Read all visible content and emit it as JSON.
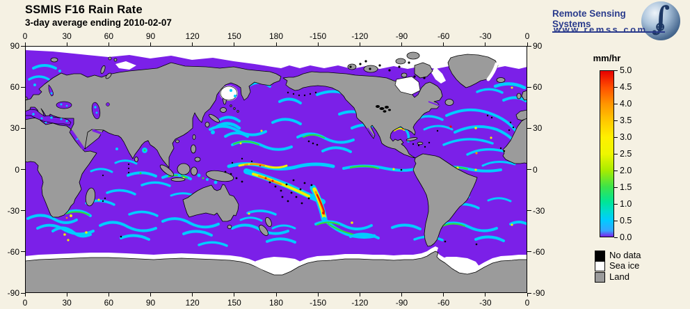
{
  "header": {
    "title": "SSMIS F16 Rain Rate",
    "subtitle": "3-day average ending 2010-02-07"
  },
  "logo": {
    "name": "Remote Sensing Systems",
    "url": "www.remss.com",
    "glyphs": {
      "integral": "∫",
      "crosshair": "⊕"
    }
  },
  "map": {
    "lon_ticks": [
      "0",
      "30",
      "60",
      "90",
      "120",
      "150",
      "180",
      "-150",
      "-120",
      "-90",
      "-60",
      "-30",
      "0"
    ],
    "lat_ticks": [
      "90",
      "60",
      "30",
      "0",
      "-30",
      "-60",
      "-90"
    ]
  },
  "colorbar": {
    "unit": "mm/hr",
    "ticks": [
      "5.0",
      "4.5",
      "4.0",
      "3.5",
      "3.0",
      "2.5",
      "2.0",
      "1.5",
      "1.0",
      "0.5",
      "0.0"
    ]
  },
  "legend": {
    "items": [
      {
        "label": "No data",
        "swatch": "#000000"
      },
      {
        "label": "Sea ice",
        "swatch": "#FFFFFF"
      },
      {
        "label": "Land",
        "swatch": "#9B9B9B"
      }
    ]
  },
  "colors": {
    "bg": "#F5F1E3",
    "ink": "#000000",
    "navy": "#2A3B8C",
    "ocean": "#7B20E8",
    "land": "#9B9B9B",
    "ice": "#FFFFFF",
    "nodata": "#000000",
    "cyan": "#00CCFF",
    "green": "#33DD33",
    "yellow": "#F0F000",
    "orange": "#FF9000",
    "red": "#EE1000",
    "frame": "#000000"
  }
}
